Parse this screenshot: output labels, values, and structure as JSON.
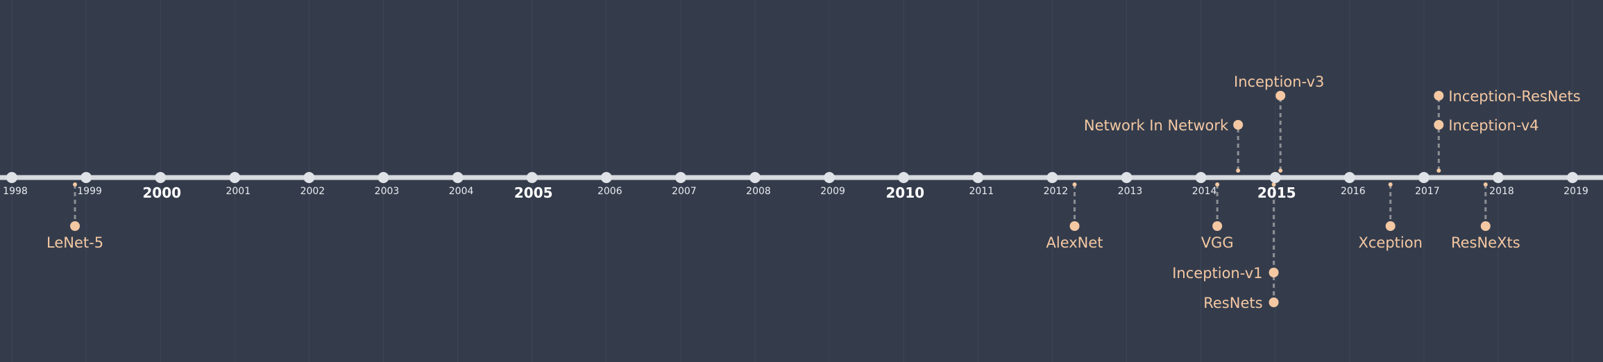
{
  "timeline": {
    "start_year": 1998,
    "end_year": 2019,
    "major_years": [
      2000,
      2005,
      2010,
      2015
    ],
    "colors": {
      "background": "#343c4c",
      "axis": "#d6d9de",
      "node": "#dfe2e6",
      "event": "#f4c8a2",
      "connector": "#8d8f93",
      "gridline": "#3d4557"
    },
    "events": [
      {
        "label": "LeNet-5",
        "date": 1998.85,
        "side": "below",
        "level": 1
      },
      {
        "label": "AlexNet",
        "date": 2012.3,
        "side": "below",
        "level": 1
      },
      {
        "label": "VGG",
        "date": 2014.22,
        "side": "below",
        "level": 1
      },
      {
        "label": "Network In Network",
        "date": 2014.5,
        "side": "above",
        "level": 1
      },
      {
        "label": "Inception-v3",
        "date": 2015.07,
        "side": "above",
        "level": 2
      },
      {
        "label": "Inception-v1",
        "date": 2014.98,
        "side": "below",
        "level": 2
      },
      {
        "label": "ResNets",
        "date": 2014.98,
        "side": "below",
        "level": 3
      },
      {
        "label": "Xception",
        "date": 2016.55,
        "side": "below",
        "level": 1
      },
      {
        "label": "Inception-ResNets",
        "date": 2017.2,
        "side": "above",
        "level": 2
      },
      {
        "label": "Inception-v4",
        "date": 2017.2,
        "side": "above",
        "level": 1
      },
      {
        "label": "ResNeXts",
        "date": 2017.83,
        "side": "below",
        "level": 1
      }
    ]
  }
}
